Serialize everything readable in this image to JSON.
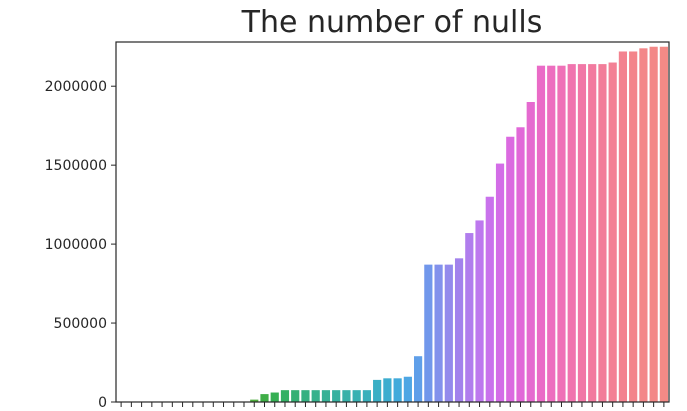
{
  "chart_data": {
    "type": "bar",
    "title": "The number of nulls",
    "xlabel": "",
    "ylabel": "",
    "ylim": [
      0,
      2280000
    ],
    "x_tick_labels_visible": false,
    "yticks": [
      0,
      500000,
      1000000,
      1500000,
      2000000
    ],
    "ytick_labels": [
      "0",
      "500000",
      "1000000",
      "1500000",
      "2000000"
    ],
    "values": [
      0,
      0,
      0,
      0,
      0,
      0,
      0,
      0,
      0,
      0,
      0,
      0,
      0,
      15000,
      50000,
      60000,
      75000,
      75000,
      75000,
      75000,
      75000,
      75000,
      75000,
      75000,
      75000,
      140000,
      150000,
      150000,
      160000,
      290000,
      870000,
      870000,
      870000,
      910000,
      1070000,
      1150000,
      1300000,
      1510000,
      1680000,
      1740000,
      1900000,
      2130000,
      2130000,
      2130000,
      2140000,
      2140000,
      2140000,
      2140000,
      2150000,
      2220000,
      2220000,
      2240000,
      2250000,
      2250000
    ],
    "colors": [
      "#f4859c",
      "#f0866e",
      "#ea8a4c",
      "#e08e3e",
      "#d29239",
      "#c49735",
      "#b79a32",
      "#a99d30",
      "#9ca02f",
      "#8ea32f",
      "#7fa530",
      "#6ea832",
      "#5eaa36",
      "#4ead3d",
      "#3fae47",
      "#35af54",
      "#33b064",
      "#34b074",
      "#35b081",
      "#36b18c",
      "#37b196",
      "#37b1a0",
      "#38b1a9",
      "#38b1b2",
      "#39b0bb",
      "#3aafc5",
      "#3cadcf",
      "#41aadb",
      "#4ea6e4",
      "#5f9fe9",
      "#7197eb",
      "#8291ec",
      "#938aec",
      "#a282ec",
      "#b07ded",
      "#bd78ee",
      "#c972ec",
      "#d36de7",
      "#db6ae0",
      "#e168d8",
      "#e56ad0",
      "#ea6bc7",
      "#ed6ebf",
      "#ef71b7",
      "#f074ae",
      "#f177a6",
      "#f27a9f",
      "#f27d99",
      "#f38094",
      "#f3828f",
      "#f3848a",
      "#f38688",
      "#f38887",
      "#f38a86"
    ]
  }
}
